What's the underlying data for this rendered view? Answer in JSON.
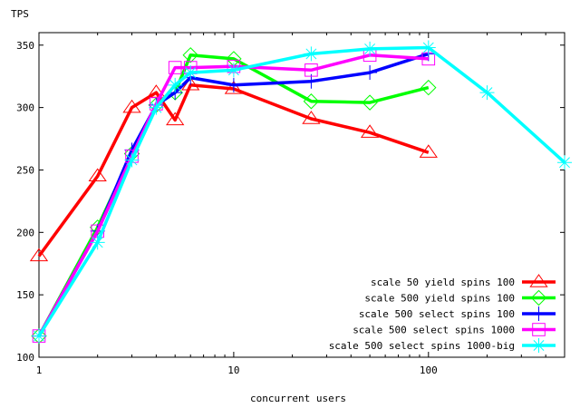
{
  "chart_data": {
    "type": "line",
    "title": "",
    "xlabel": "concurrent users",
    "ylabel": "TPS",
    "x_scale": "log",
    "xlim": [
      1,
      500
    ],
    "ylim": [
      100,
      360
    ],
    "grid": false,
    "legend_position": "bottom-right",
    "x_ticks": [
      1,
      10,
      100
    ],
    "x_tick_labels": [
      "1",
      "10",
      "100"
    ],
    "y_ticks": [
      100,
      150,
      200,
      250,
      300,
      350
    ],
    "y_tick_labels": [
      "100",
      "150",
      "200",
      "250",
      "300",
      "350"
    ],
    "series": [
      {
        "name": "scale 50 yield spins 100",
        "color": "#ff0000",
        "marker": "triangle",
        "x": [
          1,
          2,
          3,
          4,
          5,
          6,
          10,
          25,
          50,
          100
        ],
        "y": [
          181,
          245,
          300,
          312,
          290,
          318,
          315,
          291,
          280,
          264
        ]
      },
      {
        "name": "scale 500 yield spins 100",
        "color": "#00ff00",
        "marker": "diamond",
        "x": [
          1,
          2,
          3,
          4,
          5,
          6,
          10,
          25,
          50,
          100
        ],
        "y": [
          117,
          204,
          263,
          302,
          312,
          342,
          339,
          305,
          304,
          316
        ]
      },
      {
        "name": "scale 500 select spins 100",
        "color": "#0000ff",
        "marker": "plus",
        "x": [
          1,
          2,
          3,
          4,
          5,
          6,
          10,
          25,
          50,
          100
        ],
        "y": [
          117,
          201,
          266,
          302,
          312,
          324,
          318,
          321,
          328,
          343
        ]
      },
      {
        "name": "scale 500 select spins 1000",
        "color": "#ff00ff",
        "marker": "square",
        "x": [
          1,
          2,
          3,
          4,
          5,
          6,
          10,
          25,
          50,
          100
        ],
        "y": [
          117,
          201,
          261,
          303,
          332,
          332,
          333,
          330,
          342,
          339
        ]
      },
      {
        "name": "scale 500 select spins 1000-big",
        "color": "#00ffff",
        "marker": "star",
        "x": [
          1,
          2,
          3,
          4,
          5,
          6,
          10,
          25,
          50,
          100,
          200,
          500
        ],
        "y": [
          117,
          192,
          258,
          300,
          318,
          328,
          330,
          343,
          347,
          348,
          312,
          256
        ]
      }
    ]
  }
}
